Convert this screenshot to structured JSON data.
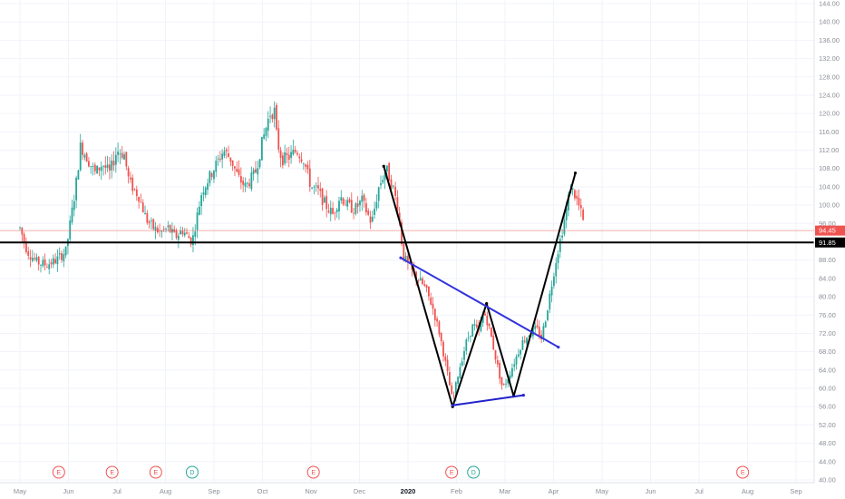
{
  "chart_data": {
    "type": "candlestick",
    "title": "",
    "xlabel": "",
    "ylabel": "",
    "ylim": [
      40,
      144
    ],
    "y_ticks": [
      "144.00",
      "140.00",
      "136.00",
      "132.00",
      "128.00",
      "124.00",
      "120.00",
      "116.00",
      "112.00",
      "108.00",
      "104.00",
      "100.00",
      "96.00",
      "92.00",
      "88.00",
      "84.00",
      "80.00",
      "76.00",
      "72.00",
      "68.00",
      "64.00",
      "60.00",
      "56.00",
      "52.00",
      "48.00",
      "44.00",
      "40.00"
    ],
    "x_ticks": [
      "May",
      "Jun",
      "Jul",
      "Aug",
      "Sep",
      "Oct",
      "Nov",
      "Dec",
      "2020",
      "Feb",
      "Mar",
      "Apr",
      "May",
      "Jun",
      "Jul",
      "Aug",
      "Sep"
    ],
    "bold_x_tick": "2020",
    "last_price": {
      "value": 94.45,
      "label": "94.45",
      "color": "#ef5350"
    },
    "support_level": {
      "value": 91.85,
      "label": "91.85",
      "color": "#000000"
    },
    "events": [
      {
        "month": "Jun",
        "offset": -0.2,
        "type": "E",
        "color": "#ef5350"
      },
      {
        "month": "Aug",
        "offset": -0.2,
        "type": "E",
        "color": "#ef5350"
      },
      {
        "month": "Aug",
        "offset": 0.55,
        "type": "D",
        "color": "#26a69a"
      },
      {
        "month": "Nov",
        "offset": 0.05,
        "type": "E",
        "color": "#ef5350"
      },
      {
        "month": "Feb",
        "offset": -0.1,
        "type": "E",
        "color": "#ef5350"
      },
      {
        "month": "Feb",
        "offset": 0.35,
        "type": "D",
        "color": "#26a69a"
      },
      {
        "month": "Jul",
        "offset": -0.1,
        "type": "E",
        "color": "#ef5350"
      },
      {
        "month": "Aug",
        "offset": -0.1,
        "type": "E",
        "color": "#ef5350",
        "year_next": true
      }
    ],
    "price_path": [
      [
        0,
        95.0
      ],
      [
        0.15,
        90.0
      ],
      [
        0.35,
        87.5
      ],
      [
        0.55,
        87.0
      ],
      [
        0.75,
        88.0
      ],
      [
        0.95,
        90.0
      ],
      [
        1.05,
        97.0
      ],
      [
        1.15,
        104.0
      ],
      [
        1.25,
        113.0
      ],
      [
        1.4,
        110.0
      ],
      [
        1.55,
        107.0
      ],
      [
        1.7,
        109.0
      ],
      [
        1.85,
        107.0
      ],
      [
        2.0,
        112.0
      ],
      [
        2.15,
        111.0
      ],
      [
        2.25,
        105.0
      ],
      [
        2.45,
        102.0
      ],
      [
        2.6,
        97.0
      ],
      [
        2.75,
        95.0
      ],
      [
        2.9,
        94.0
      ],
      [
        3.05,
        95.0
      ],
      [
        3.2,
        93.0
      ],
      [
        3.35,
        94.5
      ],
      [
        3.55,
        92.0
      ],
      [
        3.75,
        103.0
      ],
      [
        3.9,
        106.0
      ],
      [
        4.05,
        109.0
      ],
      [
        4.2,
        112.0
      ],
      [
        4.35,
        110.0
      ],
      [
        4.5,
        106.0
      ],
      [
        4.65,
        104.0
      ],
      [
        4.85,
        107.0
      ],
      [
        5.0,
        114.0
      ],
      [
        5.15,
        120.0
      ],
      [
        5.25,
        120.5
      ],
      [
        5.3,
        114.0
      ],
      [
        5.4,
        110.0
      ],
      [
        5.55,
        110.5
      ],
      [
        5.7,
        112.0
      ],
      [
        5.85,
        110.0
      ],
      [
        6.0,
        104.0
      ],
      [
        6.15,
        103.0
      ],
      [
        6.3,
        100.0
      ],
      [
        6.45,
        98.0
      ],
      [
        6.6,
        102.0
      ],
      [
        6.75,
        100.0
      ],
      [
        6.9,
        99.0
      ],
      [
        7.05,
        101.0
      ],
      [
        7.25,
        96.0
      ],
      [
        7.4,
        104.0
      ],
      [
        7.55,
        108.0
      ],
      [
        7.7,
        103.5
      ],
      [
        7.8,
        99.0
      ],
      [
        7.9,
        89.0
      ],
      [
        8.05,
        86.0
      ],
      [
        8.2,
        84.0
      ],
      [
        8.35,
        82.0
      ],
      [
        8.5,
        78.0
      ],
      [
        8.65,
        72.0
      ],
      [
        8.8,
        64.0
      ],
      [
        8.92,
        57.0
      ],
      [
        9.05,
        64.0
      ],
      [
        9.2,
        70.0
      ],
      [
        9.35,
        74.0
      ],
      [
        9.45,
        72.0
      ],
      [
        9.55,
        76.0
      ],
      [
        9.6,
        76.0
      ],
      [
        9.7,
        72.0
      ],
      [
        9.82,
        66.0
      ],
      [
        9.95,
        60.0
      ],
      [
        10.05,
        62.0
      ],
      [
        10.2,
        66.0
      ],
      [
        10.35,
        70.0
      ],
      [
        10.5,
        72.0
      ],
      [
        10.65,
        73.0
      ],
      [
        10.75,
        71.0
      ],
      [
        10.85,
        76.0
      ],
      [
        10.95,
        82.0
      ],
      [
        11.05,
        88.0
      ],
      [
        11.15,
        93.0
      ],
      [
        11.25,
        98.0
      ],
      [
        11.35,
        104.0
      ],
      [
        11.45,
        102.0
      ],
      [
        11.55,
        99.0
      ],
      [
        11.62,
        96.0
      ]
    ],
    "drawings": [
      {
        "name": "w-pattern",
        "color": "#000000",
        "points": [
          [
            7.5,
            108.5
          ],
          [
            8.92,
            56.0
          ],
          [
            9.62,
            78.5
          ],
          [
            10.18,
            58.3
          ],
          [
            11.45,
            107.0
          ]
        ]
      },
      {
        "name": "upper-trendline",
        "color": "#3333dd",
        "points": [
          [
            7.85,
            88.5
          ],
          [
            11.1,
            69.0
          ]
        ]
      },
      {
        "name": "lower-trendline",
        "color": "#2222cc",
        "points": [
          [
            8.92,
            56.3
          ],
          [
            10.38,
            58.5
          ]
        ]
      }
    ]
  }
}
